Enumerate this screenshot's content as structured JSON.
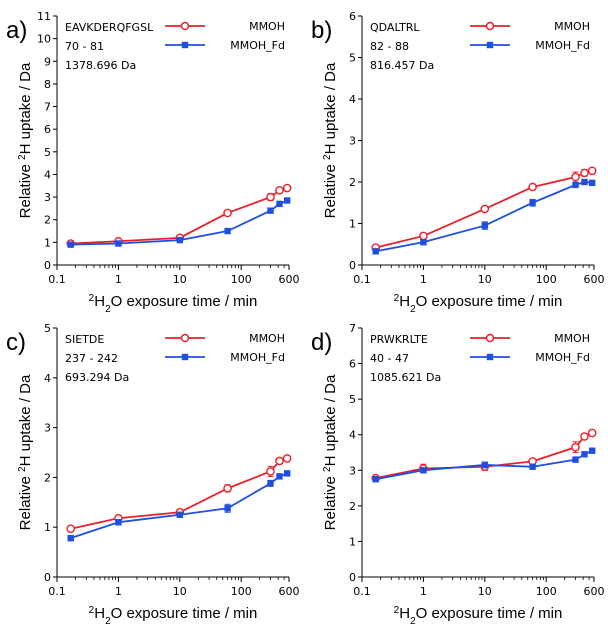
{
  "chart_data": [
    {
      "type": "line",
      "panel_label": "a)",
      "peptide": "EAVKDERQFGSL",
      "residues": "70 - 81",
      "mass": "1378.696 Da",
      "xlabel": "H2O exposure time / min",
      "ylabel": "Relative H uptake / Da",
      "xscale": "log",
      "xlim": [
        0.1,
        600
      ],
      "ylim": [
        0,
        11
      ],
      "x_ticks": [
        0.1,
        1,
        10,
        100,
        600
      ],
      "x_tick_labels": [
        "0.1",
        "1",
        "10",
        "100",
        "600"
      ],
      "y_ticks": [
        0,
        1,
        2,
        3,
        4,
        5,
        6,
        7,
        8,
        9,
        10,
        11
      ],
      "y_tick_labels": [
        "0",
        "1",
        "2",
        "3",
        "4",
        "5",
        "6",
        "7",
        "8",
        "9",
        "10",
        "11"
      ],
      "x": [
        0.167,
        1,
        10,
        60,
        300,
        420,
        560
      ],
      "series": [
        {
          "name": "MMOH",
          "color": "#e8202a",
          "marker": "open-circle",
          "values": [
            0.95,
            1.05,
            1.2,
            2.3,
            3.0,
            3.3,
            3.4
          ],
          "errors": [
            0.08,
            0.06,
            0.06,
            0.08,
            0.15,
            0.1,
            0.08
          ]
        },
        {
          "name": "MMOH_Fd",
          "color": "#1f4fe0",
          "marker": "filled-square",
          "values": [
            0.9,
            0.95,
            1.1,
            1.5,
            2.4,
            2.7,
            2.85
          ],
          "errors": [
            0.05,
            0.05,
            0.05,
            0.06,
            0.08,
            0.06,
            0.06
          ]
        }
      ]
    },
    {
      "type": "line",
      "panel_label": "b)",
      "peptide": "QDALTRL",
      "residues": "82 - 88",
      "mass": "816.457 Da",
      "xlabel": "H2O exposure time / min",
      "ylabel": "Relative H uptake / Da",
      "xscale": "log",
      "xlim": [
        0.1,
        600
      ],
      "ylim": [
        0,
        6
      ],
      "x_ticks": [
        0.1,
        1,
        10,
        100,
        600
      ],
      "x_tick_labels": [
        "0.1",
        "1",
        "10",
        "100",
        "600"
      ],
      "y_ticks": [
        0,
        1,
        2,
        3,
        4,
        5,
        6
      ],
      "y_tick_labels": [
        "0",
        "1",
        "2",
        "3",
        "4",
        "5",
        "6"
      ],
      "x": [
        0.167,
        1,
        10,
        60,
        300,
        420,
        560
      ],
      "series": [
        {
          "name": "MMOH",
          "color": "#e8202a",
          "marker": "open-circle",
          "values": [
            0.42,
            0.7,
            1.35,
            1.88,
            2.12,
            2.22,
            2.27
          ],
          "errors": [
            0.05,
            0.07,
            0.06,
            0.07,
            0.12,
            0.08,
            0.06
          ]
        },
        {
          "name": "MMOH_Fd",
          "color": "#1f4fe0",
          "marker": "filled-square",
          "values": [
            0.33,
            0.55,
            0.95,
            1.5,
            1.93,
            2.0,
            1.98
          ],
          "errors": [
            0.04,
            0.05,
            0.09,
            0.08,
            0.06,
            0.05,
            0.05
          ]
        }
      ]
    },
    {
      "type": "line",
      "panel_label": "c)",
      "peptide": "SIETDE",
      "residues": "237 - 242",
      "mass": "693.294 Da",
      "xlabel": "H2O exposure time / min",
      "ylabel": "Relative H uptake / Da",
      "xscale": "log",
      "xlim": [
        0.1,
        600
      ],
      "ylim": [
        0,
        5
      ],
      "x_ticks": [
        0.1,
        1,
        10,
        100,
        600
      ],
      "x_tick_labels": [
        "0.1",
        "1",
        "10",
        "100",
        "600"
      ],
      "y_ticks": [
        0,
        1,
        2,
        3,
        4,
        5
      ],
      "y_tick_labels": [
        "0",
        "1",
        "2",
        "3",
        "4",
        "5"
      ],
      "x": [
        0.167,
        1,
        10,
        60,
        300,
        420,
        560
      ],
      "series": [
        {
          "name": "MMOH",
          "color": "#e8202a",
          "marker": "open-circle",
          "values": [
            0.97,
            1.18,
            1.3,
            1.78,
            2.12,
            2.33,
            2.38
          ],
          "errors": [
            0.05,
            0.06,
            0.05,
            0.07,
            0.1,
            0.06,
            0.05
          ]
        },
        {
          "name": "MMOH_Fd",
          "color": "#1f4fe0",
          "marker": "filled-square",
          "values": [
            0.78,
            1.1,
            1.25,
            1.38,
            1.88,
            2.02,
            2.08
          ],
          "errors": [
            0.05,
            0.05,
            0.05,
            0.08,
            0.06,
            0.05,
            0.05
          ]
        }
      ]
    },
    {
      "type": "line",
      "panel_label": "d)",
      "peptide": "PRWKRLTE",
      "residues": "40 - 47",
      "mass": "1085.621 Da",
      "xlabel": "H2O exposure time / min",
      "ylabel": "Relative H uptake / Da",
      "xscale": "log",
      "xlim": [
        0.1,
        600
      ],
      "ylim": [
        0,
        7
      ],
      "x_ticks": [
        0.1,
        1,
        10,
        100,
        600
      ],
      "x_tick_labels": [
        "0.1",
        "1",
        "10",
        "100",
        "600"
      ],
      "y_ticks": [
        0,
        1,
        2,
        3,
        4,
        5,
        6,
        7
      ],
      "y_tick_labels": [
        "0",
        "1",
        "2",
        "3",
        "4",
        "5",
        "6",
        "7"
      ],
      "x": [
        0.167,
        1,
        10,
        60,
        300,
        420,
        560
      ],
      "series": [
        {
          "name": "MMOH",
          "color": "#e8202a",
          "marker": "open-circle",
          "values": [
            2.78,
            3.05,
            3.1,
            3.25,
            3.65,
            3.95,
            4.05
          ],
          "errors": [
            0.05,
            0.12,
            0.1,
            0.06,
            0.15,
            0.08,
            0.06
          ]
        },
        {
          "name": "MMOH_Fd",
          "color": "#1f4fe0",
          "marker": "filled-square",
          "values": [
            2.75,
            3.0,
            3.15,
            3.1,
            3.3,
            3.45,
            3.55
          ],
          "errors": [
            0.05,
            0.06,
            0.08,
            0.06,
            0.07,
            0.05,
            0.05
          ]
        }
      ]
    }
  ]
}
